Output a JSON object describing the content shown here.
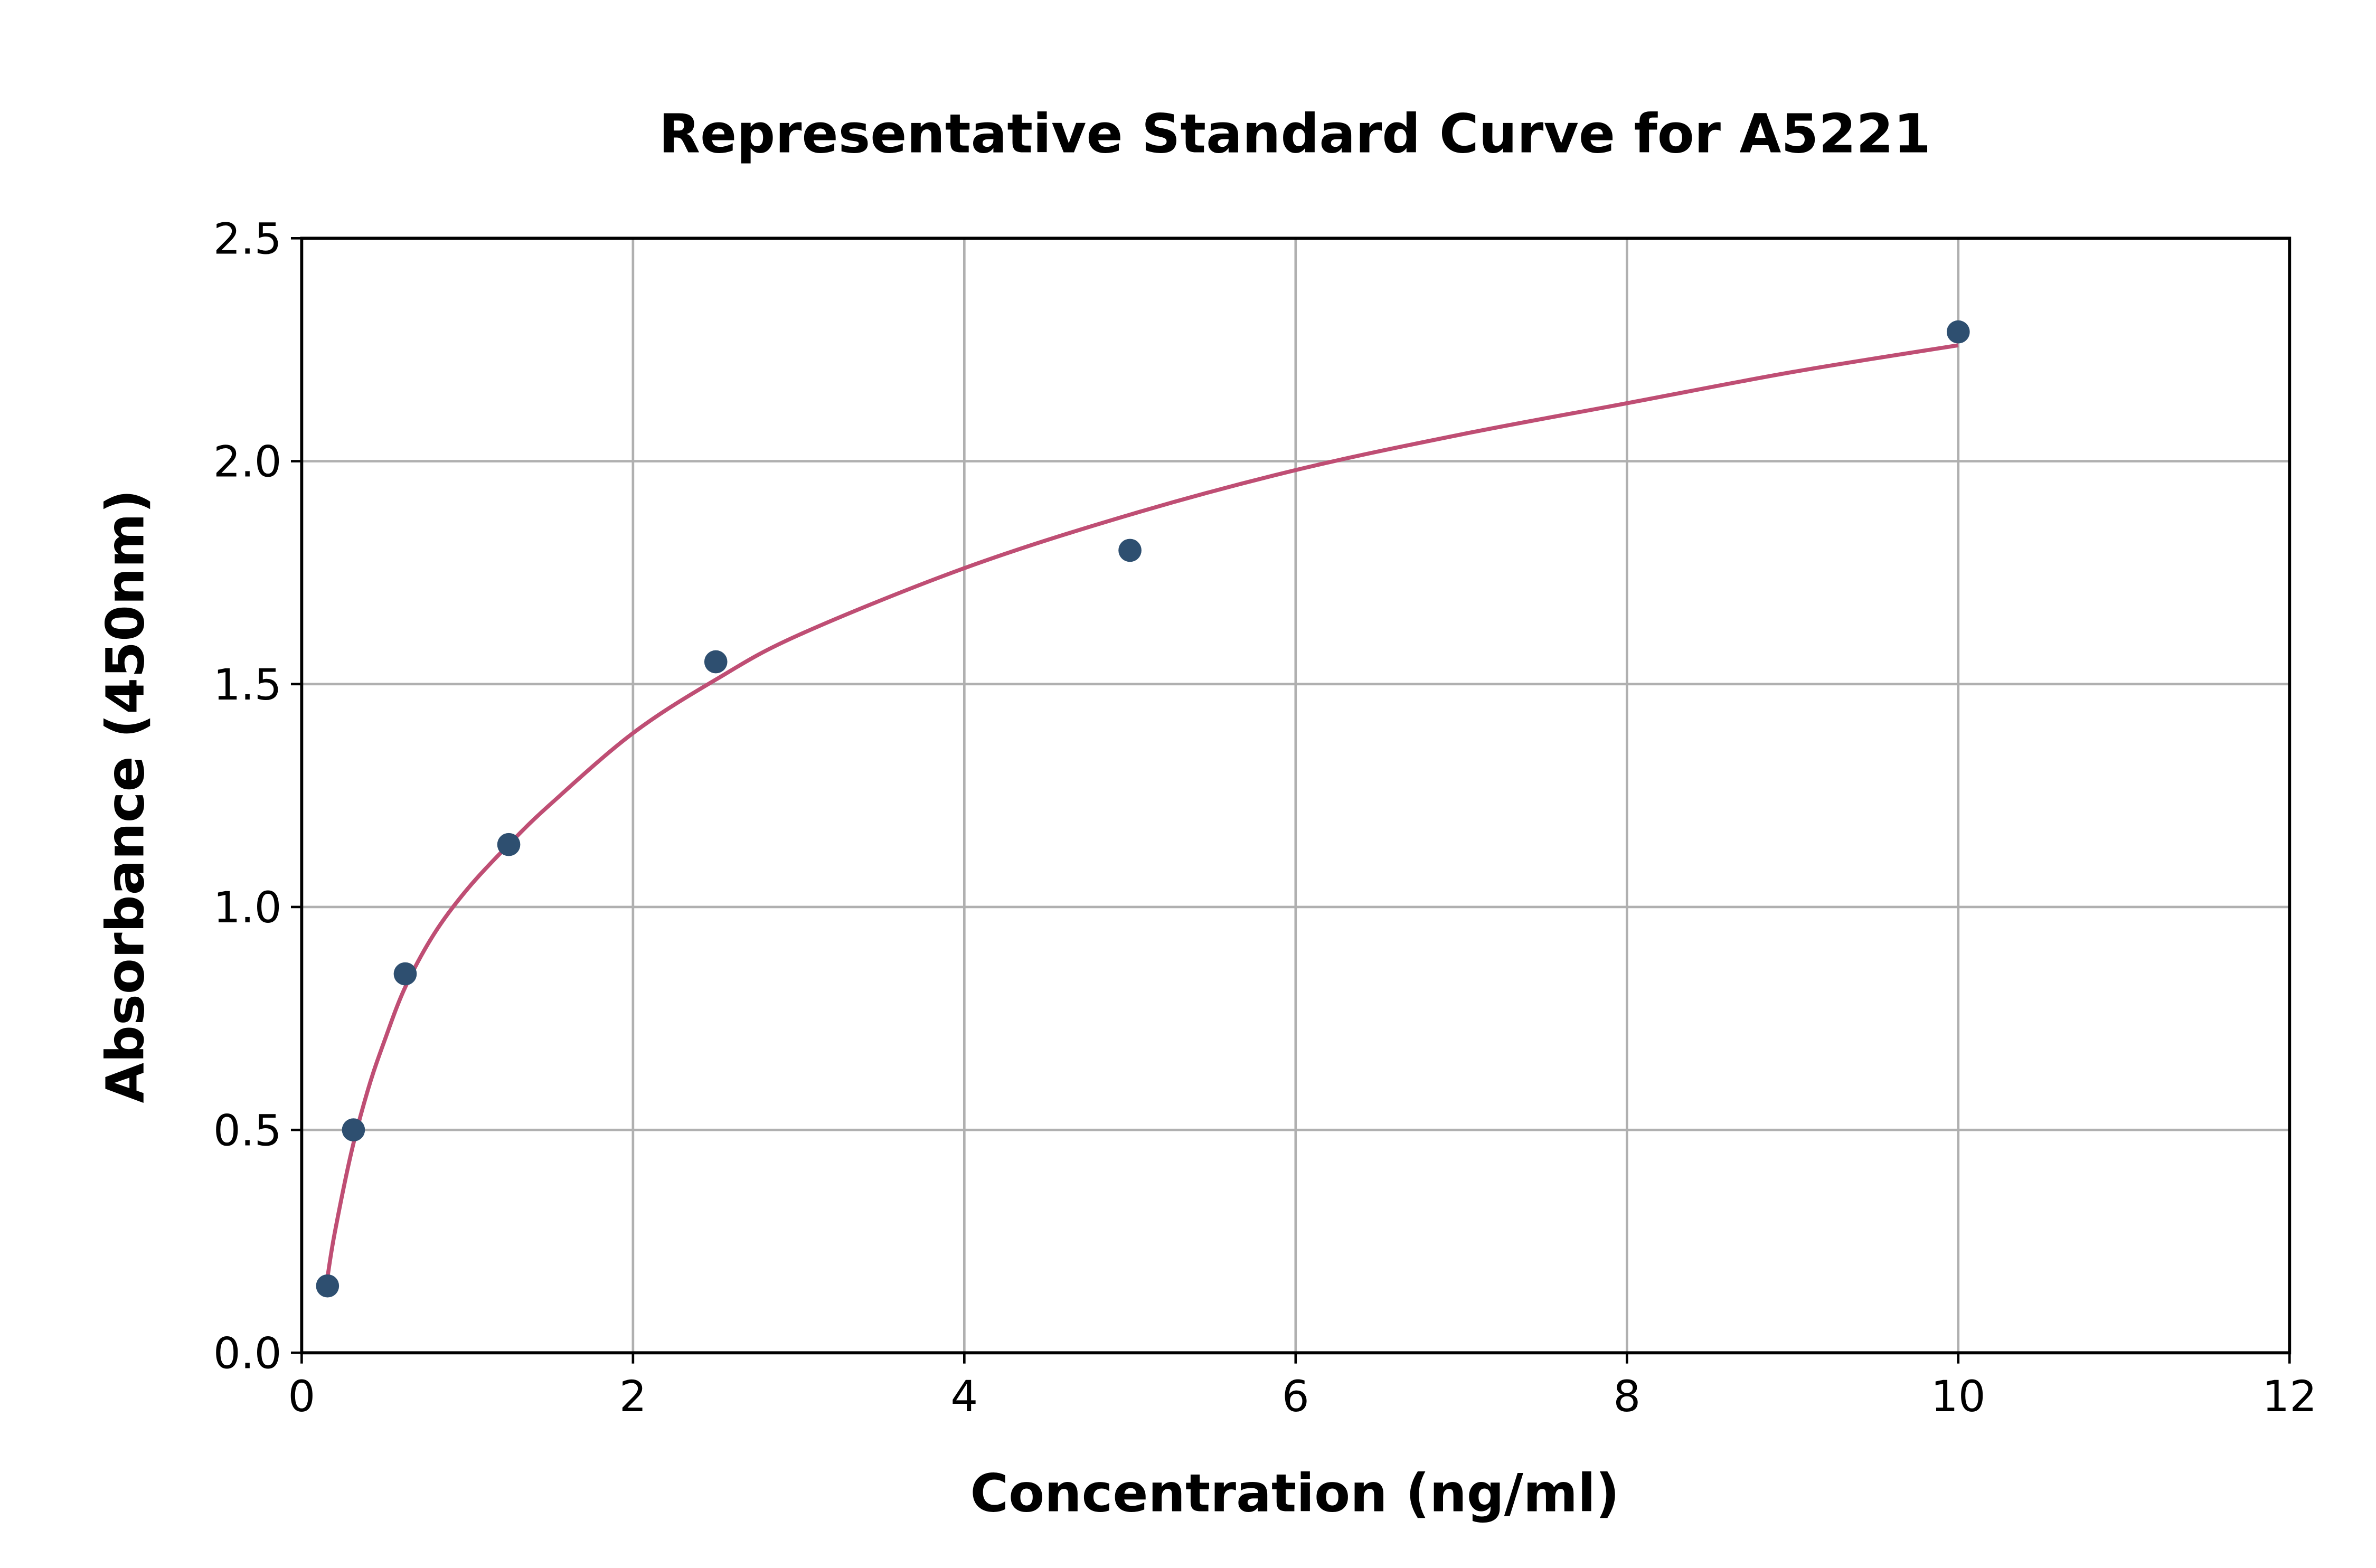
{
  "chart_data": {
    "type": "scatter",
    "title": "Representative Standard Curve for A5221",
    "xlabel": "Concentration (ng/ml)",
    "ylabel": "Absorbance (450nm)",
    "xlim": [
      0,
      12
    ],
    "ylim": [
      0,
      2.5
    ],
    "xticks": [
      "0",
      "2",
      "4",
      "6",
      "8",
      "10",
      "12"
    ],
    "yticks": [
      "0.0",
      "0.5",
      "1.0",
      "1.5",
      "2.0",
      "2.5"
    ],
    "grid": true,
    "points": {
      "x": [
        0.156,
        0.3125,
        0.625,
        1.25,
        2.5,
        5,
        10
      ],
      "y": [
        0.15,
        0.5,
        0.85,
        1.14,
        1.55,
        1.8,
        2.29
      ],
      "color": "#2e4f70"
    },
    "fit_curve": {
      "x": [
        0.156,
        0.2,
        0.3,
        0.4,
        0.5,
        0.625,
        0.8,
        1,
        1.25,
        1.5,
        2,
        2.5,
        3,
        4,
        5,
        6,
        7,
        8,
        9,
        10
      ],
      "y": [
        0.17,
        0.27,
        0.45,
        0.59,
        0.7,
        0.82,
        0.94,
        1.04,
        1.14,
        1.23,
        1.39,
        1.51,
        1.61,
        1.76,
        1.88,
        1.98,
        2.06,
        2.13,
        2.2,
        2.26
      ],
      "color": "#bf4e74"
    }
  }
}
